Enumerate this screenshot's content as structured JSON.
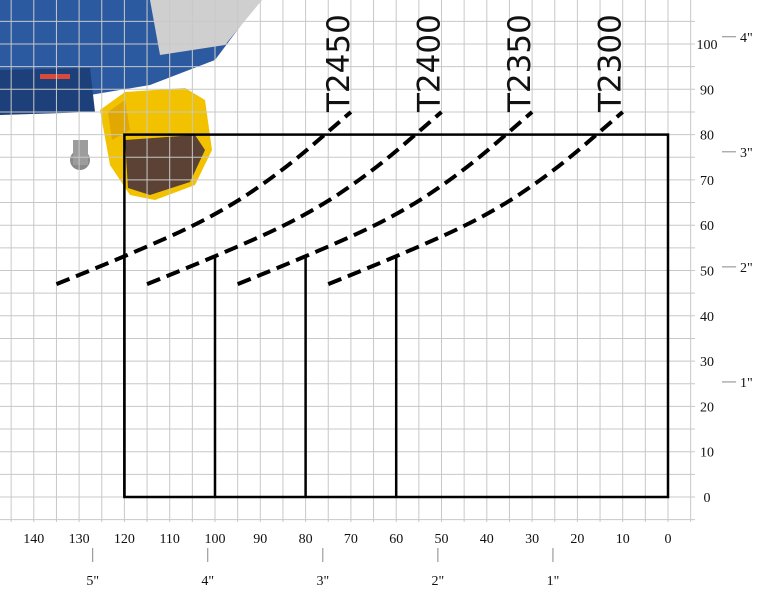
{
  "chart_data": {
    "type": "line",
    "x_ticks": [
      140,
      130,
      120,
      110,
      100,
      90,
      80,
      70,
      60,
      50,
      40,
      30,
      20,
      10,
      0
    ],
    "y_ticks": [
      0,
      10,
      20,
      30,
      40,
      50,
      60,
      70,
      80,
      90,
      100
    ],
    "xlim": [
      140,
      0
    ],
    "ylim": [
      0,
      100
    ],
    "x_reversed": true,
    "grid": true,
    "x_inch_labels": [
      {
        "value": 5,
        "label": "5\""
      },
      {
        "value": 4,
        "label": "4\""
      },
      {
        "value": 3,
        "label": "3\""
      },
      {
        "value": 2,
        "label": "2\""
      },
      {
        "value": 1,
        "label": "1\""
      }
    ],
    "y_inch_labels": [
      {
        "value": 4,
        "label": "4\""
      },
      {
        "value": 3,
        "label": "3\""
      },
      {
        "value": 2,
        "label": "2\""
      },
      {
        "value": 1,
        "label": "1\""
      }
    ],
    "capacity_box": {
      "x": [
        120,
        0
      ],
      "y": [
        0,
        80
      ]
    },
    "verticals": [
      120,
      100,
      80,
      60
    ],
    "series": [
      {
        "name": "T2450",
        "points": [
          [
            135,
            47
          ],
          [
            120,
            53
          ],
          [
            100,
            62
          ],
          [
            85,
            72
          ],
          [
            70,
            85
          ]
        ]
      },
      {
        "name": "T2400",
        "points": [
          [
            115,
            47
          ],
          [
            100,
            53
          ],
          [
            80,
            62
          ],
          [
            65,
            72
          ],
          [
            50,
            85
          ]
        ]
      },
      {
        "name": "T2350",
        "points": [
          [
            95,
            47
          ],
          [
            80,
            53
          ],
          [
            60,
            62
          ],
          [
            45,
            72
          ],
          [
            30,
            85
          ]
        ]
      },
      {
        "name": "T2300",
        "points": [
          [
            75,
            47
          ],
          [
            60,
            53
          ],
          [
            40,
            62
          ],
          [
            25,
            72
          ],
          [
            10,
            85
          ]
        ]
      }
    ]
  }
}
